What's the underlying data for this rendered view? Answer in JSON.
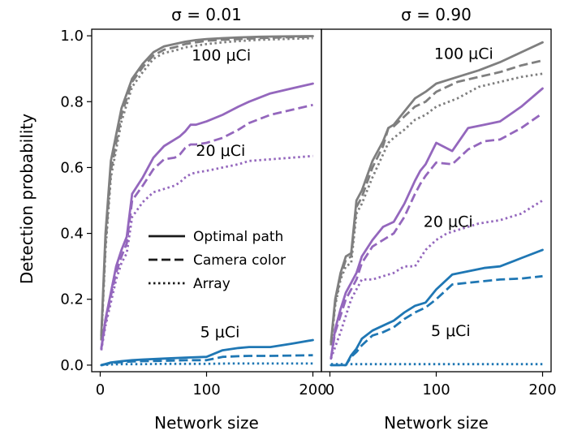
{
  "chart_data": {
    "type": "line",
    "ylabel": "Detection probability",
    "xlabel": "Network size",
    "xlim": [
      -8,
      208
    ],
    "ylim": [
      -0.02,
      1.02
    ],
    "xticks": [
      0,
      100,
      200
    ],
    "xtick_labels": [
      "0",
      "100",
      "200"
    ],
    "yticks": [
      0.0,
      0.2,
      0.4,
      0.6,
      0.8,
      1.0
    ],
    "ytick_labels": [
      "0.0",
      "0.2",
      "0.4",
      "0.6",
      "0.8",
      "1.0"
    ],
    "colors": {
      "100": "#7f7f7f",
      "20": "#9467bd",
      "5": "#1f77b4"
    },
    "legend": {
      "placement": "left panel, center-right",
      "entries": [
        {
          "label": "Optimal path",
          "style": "solid"
        },
        {
          "label": "Camera color",
          "style": "dashed"
        },
        {
          "label": "Array",
          "style": "dotted"
        }
      ]
    },
    "panels": [
      {
        "title": "σ = 0.01",
        "annotations": [
          {
            "text": "100 μCi",
            "x": 86,
            "y": 0.925
          },
          {
            "text": "20 μCi",
            "x": 90,
            "y": 0.635
          },
          {
            "text": "5 μCi",
            "x": 94,
            "y": 0.085
          }
        ],
        "series": [
          {
            "name": "100 μCi Optimal path",
            "source": "100",
            "style": "solid",
            "x": [
              1,
              5,
              10,
              20,
              30,
              40,
              50,
              60,
              70,
              80,
              90,
              100,
              115,
              130,
              150,
              170,
              200
            ],
            "y": [
              0.09,
              0.4,
              0.62,
              0.78,
              0.87,
              0.915,
              0.95,
              0.968,
              0.975,
              0.982,
              0.987,
              0.99,
              0.993,
              0.995,
              0.997,
              0.998,
              0.999
            ]
          },
          {
            "name": "100 μCi Camera color",
            "source": "100",
            "style": "dashed",
            "x": [
              1,
              5,
              10,
              20,
              30,
              40,
              50,
              60,
              70,
              80,
              90,
              100,
              115,
              130,
              150,
              170,
              200
            ],
            "y": [
              0.08,
              0.37,
              0.59,
              0.76,
              0.86,
              0.905,
              0.94,
              0.958,
              0.965,
              0.975,
              0.98,
              0.985,
              0.988,
              0.99,
              0.993,
              0.995,
              0.997
            ]
          },
          {
            "name": "100 μCi Array",
            "source": "100",
            "style": "dotted",
            "x": [
              1,
              5,
              10,
              20,
              30,
              40,
              50,
              60,
              70,
              80,
              90,
              100,
              115,
              130,
              150,
              170,
              200
            ],
            "y": [
              0.075,
              0.35,
              0.57,
              0.74,
              0.845,
              0.89,
              0.93,
              0.948,
              0.955,
              0.965,
              0.97,
              0.975,
              0.98,
              0.984,
              0.988,
              0.99,
              0.993
            ]
          },
          {
            "name": "20 μCi Optimal path",
            "source": "20",
            "style": "solid",
            "x": [
              1,
              5,
              10,
              15,
              20,
              25,
              30,
              40,
              50,
              60,
              70,
              75,
              80,
              85,
              90,
              100,
              115,
              130,
              140,
              160,
              180,
              200
            ],
            "y": [
              0.05,
              0.14,
              0.22,
              0.3,
              0.35,
              0.39,
              0.52,
              0.57,
              0.63,
              0.665,
              0.685,
              0.695,
              0.71,
              0.73,
              0.73,
              0.74,
              0.76,
              0.785,
              0.8,
              0.825,
              0.84,
              0.855
            ]
          },
          {
            "name": "20 μCi Camera color",
            "source": "20",
            "style": "dashed",
            "x": [
              1,
              5,
              10,
              15,
              20,
              25,
              30,
              40,
              50,
              60,
              70,
              75,
              80,
              85,
              90,
              100,
              115,
              130,
              140,
              160,
              180,
              200
            ],
            "y": [
              0.05,
              0.13,
              0.21,
              0.28,
              0.33,
              0.37,
              0.5,
              0.545,
              0.595,
              0.625,
              0.63,
              0.64,
              0.66,
              0.67,
              0.67,
              0.675,
              0.69,
              0.715,
              0.735,
              0.76,
              0.775,
              0.79
            ]
          },
          {
            "name": "20 μCi Array",
            "source": "20",
            "style": "dotted",
            "x": [
              1,
              5,
              10,
              15,
              20,
              25,
              30,
              40,
              50,
              60,
              70,
              75,
              80,
              85,
              90,
              100,
              115,
              130,
              140,
              160,
              180,
              200
            ],
            "y": [
              0.045,
              0.12,
              0.19,
              0.26,
              0.31,
              0.34,
              0.45,
              0.495,
              0.525,
              0.535,
              0.545,
              0.555,
              0.57,
              0.58,
              0.585,
              0.59,
              0.6,
              0.61,
              0.62,
              0.625,
              0.63,
              0.635
            ]
          },
          {
            "name": "5 μCi Optimal path",
            "source": "5",
            "style": "solid",
            "x": [
              1,
              10,
              20,
              30,
              40,
              60,
              80,
              100,
              115,
              130,
              140,
              160,
              180,
              200
            ],
            "y": [
              0.0,
              0.008,
              0.012,
              0.015,
              0.017,
              0.02,
              0.023,
              0.025,
              0.045,
              0.052,
              0.055,
              0.055,
              0.065,
              0.076
            ]
          },
          {
            "name": "5 μCi Camera color",
            "source": "5",
            "style": "dashed",
            "x": [
              1,
              10,
              20,
              30,
              40,
              60,
              80,
              100,
              115,
              130,
              140,
              160,
              180,
              200
            ],
            "y": [
              0.0,
              0.006,
              0.009,
              0.011,
              0.012,
              0.013,
              0.015,
              0.015,
              0.025,
              0.027,
              0.028,
              0.028,
              0.029,
              0.03
            ]
          },
          {
            "name": "5 μCi Array",
            "source": "5",
            "style": "dotted",
            "x": [
              1,
              10,
              20,
              40,
              60,
              80,
              100,
              120,
              140,
              160,
              180,
              200
            ],
            "y": [
              0.0,
              0.002,
              0.003,
              0.003,
              0.004,
              0.004,
              0.004,
              0.005,
              0.005,
              0.005,
              0.005,
              0.005
            ]
          }
        ]
      },
      {
        "title": "σ = 0.90",
        "annotations": [
          {
            "text": "100 μCi",
            "x": 98,
            "y": 0.93
          },
          {
            "text": "20 μCi",
            "x": 88,
            "y": 0.42
          },
          {
            "text": "5 μCi",
            "x": 95,
            "y": 0.088
          }
        ],
        "series": [
          {
            "name": "100 μCi Optimal path",
            "source": "100",
            "style": "solid",
            "x": [
              1,
              5,
              10,
              15,
              20,
              25,
              30,
              40,
              50,
              55,
              60,
              70,
              80,
              90,
              100,
              120,
              140,
              160,
              180,
              200
            ],
            "y": [
              0.07,
              0.2,
              0.28,
              0.33,
              0.34,
              0.5,
              0.53,
              0.62,
              0.68,
              0.72,
              0.73,
              0.77,
              0.81,
              0.83,
              0.855,
              0.875,
              0.895,
              0.92,
              0.95,
              0.98
            ]
          },
          {
            "name": "100 μCi Camera color",
            "source": "100",
            "style": "dashed",
            "x": [
              1,
              5,
              10,
              15,
              20,
              25,
              30,
              40,
              50,
              55,
              60,
              70,
              80,
              90,
              100,
              120,
              140,
              160,
              180,
              200
            ],
            "y": [
              0.06,
              0.19,
              0.27,
              0.32,
              0.33,
              0.48,
              0.51,
              0.6,
              0.665,
              0.72,
              0.725,
              0.755,
              0.785,
              0.8,
              0.83,
              0.86,
              0.875,
              0.89,
              0.91,
              0.925
            ]
          },
          {
            "name": "100 μCi Array",
            "source": "100",
            "style": "dotted",
            "x": [
              1,
              5,
              10,
              15,
              20,
              25,
              30,
              40,
              50,
              55,
              60,
              70,
              80,
              90,
              100,
              120,
              140,
              160,
              180,
              200
            ],
            "y": [
              0.06,
              0.18,
              0.26,
              0.3,
              0.31,
              0.46,
              0.49,
              0.57,
              0.64,
              0.675,
              0.69,
              0.715,
              0.745,
              0.76,
              0.785,
              0.81,
              0.845,
              0.86,
              0.875,
              0.885
            ]
          },
          {
            "name": "20 μCi Optimal path",
            "source": "20",
            "style": "solid",
            "x": [
              1,
              5,
              10,
              15,
              20,
              25,
              30,
              40,
              50,
              60,
              70,
              80,
              85,
              90,
              100,
              115,
              130,
              145,
              160,
              180,
              200
            ],
            "y": [
              0.02,
              0.11,
              0.17,
              0.22,
              0.25,
              0.28,
              0.33,
              0.38,
              0.42,
              0.435,
              0.49,
              0.56,
              0.59,
              0.61,
              0.675,
              0.65,
              0.72,
              0.73,
              0.74,
              0.785,
              0.84
            ]
          },
          {
            "name": "20 μCi Camera color",
            "source": "20",
            "style": "dashed",
            "x": [
              1,
              5,
              10,
              15,
              20,
              25,
              30,
              40,
              50,
              60,
              70,
              80,
              85,
              90,
              100,
              115,
              130,
              145,
              160,
              180,
              200
            ],
            "y": [
              0.02,
              0.1,
              0.15,
              0.2,
              0.23,
              0.26,
              0.31,
              0.36,
              0.38,
              0.4,
              0.45,
              0.52,
              0.55,
              0.575,
              0.615,
              0.61,
              0.655,
              0.68,
              0.685,
              0.72,
              0.765
            ]
          },
          {
            "name": "20 μCi Array",
            "source": "20",
            "style": "dotted",
            "x": [
              1,
              10,
              20,
              25,
              30,
              40,
              50,
              60,
              65,
              70,
              80,
              90,
              100,
              110,
              120,
              140,
              160,
              180,
              200
            ],
            "y": [
              0.02,
              0.1,
              0.2,
              0.23,
              0.26,
              0.26,
              0.27,
              0.28,
              0.29,
              0.3,
              0.3,
              0.35,
              0.38,
              0.4,
              0.41,
              0.43,
              0.44,
              0.46,
              0.5
            ]
          },
          {
            "name": "5 μCi Optimal path",
            "source": "5",
            "style": "solid",
            "x": [
              1,
              10,
              15,
              20,
              25,
              30,
              40,
              50,
              60,
              70,
              80,
              90,
              100,
              115,
              130,
              145,
              160,
              180,
              200
            ],
            "y": [
              0.0,
              0.0,
              0.0,
              0.03,
              0.05,
              0.08,
              0.105,
              0.12,
              0.135,
              0.16,
              0.18,
              0.19,
              0.23,
              0.275,
              0.285,
              0.295,
              0.3,
              0.325,
              0.35
            ]
          },
          {
            "name": "5 μCi Camera color",
            "source": "5",
            "style": "dashed",
            "x": [
              1,
              10,
              15,
              20,
              25,
              30,
              40,
              50,
              60,
              70,
              80,
              90,
              100,
              115,
              130,
              145,
              160,
              180,
              200
            ],
            "y": [
              0.0,
              0.0,
              0.0,
              0.025,
              0.04,
              0.06,
              0.09,
              0.1,
              0.115,
              0.14,
              0.16,
              0.175,
              0.2,
              0.245,
              0.25,
              0.255,
              0.26,
              0.263,
              0.27
            ]
          },
          {
            "name": "5 μCi Array",
            "source": "5",
            "style": "dotted",
            "x": [
              1,
              20,
              40,
              60,
              80,
              100,
              120,
              140,
              160,
              180,
              200
            ],
            "y": [
              0.003,
              0.003,
              0.003,
              0.003,
              0.003,
              0.003,
              0.003,
              0.003,
              0.003,
              0.003,
              0.003
            ]
          }
        ]
      }
    ]
  }
}
